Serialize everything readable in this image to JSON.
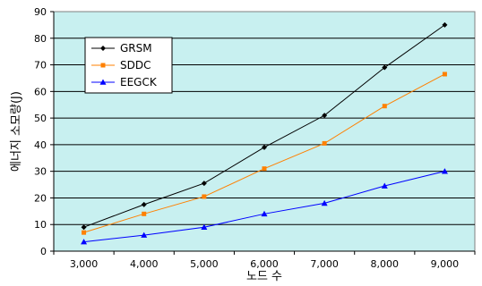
{
  "chart_data": {
    "type": "line",
    "title": "",
    "xlabel": "노드 수",
    "ylabel": "에너지 소모량(J)",
    "x": [
      3000,
      4000,
      5000,
      6000,
      7000,
      8000,
      9000
    ],
    "x_tick_labels": [
      "3,000",
      "4,000",
      "5,000",
      "6,000",
      "7,000",
      "8,000",
      "9,000"
    ],
    "ylim": [
      0,
      90
    ],
    "y_ticks": [
      0,
      10,
      20,
      30,
      40,
      50,
      60,
      70,
      80,
      90
    ],
    "grid": "horizontal",
    "legend_position": "top-left",
    "plot_background": "#c8f0f0",
    "series": [
      {
        "name": "GRSM",
        "color": "#000000",
        "marker": "diamond",
        "values": [
          9,
          17.5,
          25.5,
          39,
          51,
          69,
          85
        ]
      },
      {
        "name": "SDDC",
        "color": "#ff8000",
        "marker": "square",
        "values": [
          7,
          14,
          20.5,
          31,
          40.5,
          54.5,
          66.5
        ]
      },
      {
        "name": "EEGCK",
        "color": "#0000ff",
        "marker": "triangle",
        "values": [
          3.5,
          6,
          9,
          14,
          18,
          24.5,
          30
        ]
      }
    ]
  }
}
